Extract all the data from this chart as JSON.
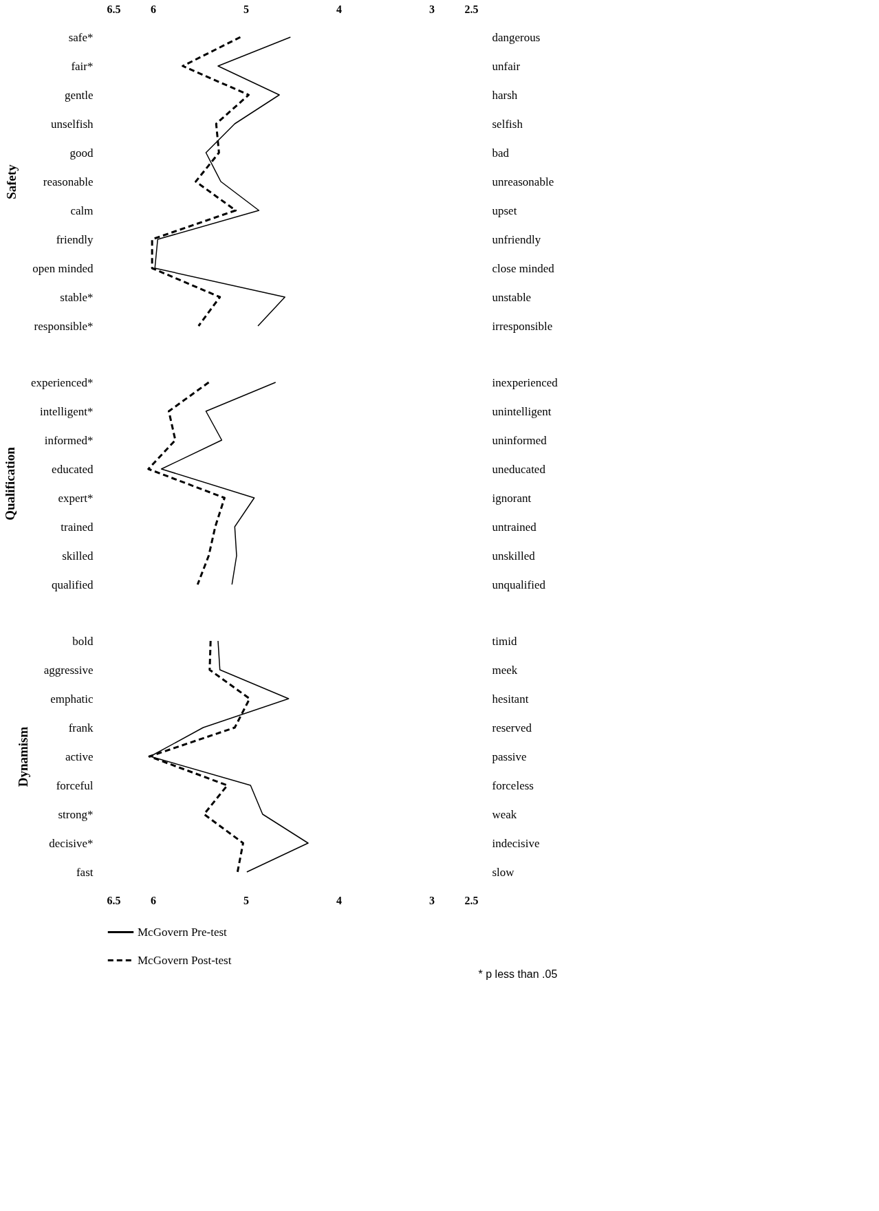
{
  "chart_data": [
    {
      "type": "line",
      "orientation": "horizontal",
      "ylabel": "Safety",
      "xlim": [
        6.5,
        2.5
      ],
      "xticks": [
        6.5,
        6,
        5,
        4,
        3,
        2.5
      ],
      "grid": false,
      "categories": [
        "safe*",
        "fair*",
        "gentle",
        "unselfish",
        "good",
        "reasonable",
        "calm",
        "friendly",
        "open minded",
        "stable*",
        "responsible*"
      ],
      "y2_categories": [
        "dangerous",
        "unfair",
        "harsh",
        "selfish",
        "bad",
        "unreasonable",
        "upset",
        "unfriendly",
        "close minded",
        "unstable",
        "irresponsible"
      ],
      "series": [
        {
          "color": "#000000",
          "line_style": "solid",
          "values": [
            4.52,
            5.3,
            4.64,
            5.12,
            5.43,
            5.27,
            4.86,
            5.95,
            5.98,
            4.58,
            4.87
          ]
        },
        {
          "color": "#000000",
          "line_style": "dashed",
          "values": [
            5.06,
            5.68,
            4.97,
            5.32,
            5.29,
            5.54,
            5.11,
            6.01,
            6.01,
            5.28,
            5.51
          ]
        }
      ]
    },
    {
      "type": "line",
      "orientation": "horizontal",
      "ylabel": "Qualification",
      "xlim": [
        6.5,
        2.5
      ],
      "tick_labels": "y",
      "grid": false,
      "categories": [
        "experienced*",
        "intelligent*",
        "informed*",
        "educated",
        "expert*",
        "trained",
        "skilled",
        "qualified"
      ],
      "y2_categories": [
        "inexperienced",
        "unintelligent",
        "uninformed",
        "uneducated",
        "ignorant",
        "untrained",
        "unskilled",
        "unqualified"
      ],
      "series": [
        {
          "color": "#000000",
          "line_style": "solid",
          "values": [
            4.68,
            5.43,
            5.26,
            5.91,
            4.91,
            5.12,
            5.1,
            5.15
          ]
        },
        {
          "color": "#000000",
          "line_style": "dashed",
          "values": [
            5.4,
            5.83,
            5.76,
            6.05,
            5.23,
            5.33,
            5.4,
            5.52
          ]
        }
      ]
    },
    {
      "type": "line",
      "orientation": "horizontal",
      "ylabel": "Dynamism",
      "xlim": [
        6.5,
        2.5
      ],
      "xticks": [
        6.5,
        6,
        5,
        4,
        3,
        2.5
      ],
      "grid": false,
      "legend": "bottom",
      "categories": [
        "bold",
        "aggressive",
        "emphatic",
        "frank",
        "active",
        "forceful",
        "strong*",
        "decisive*",
        "fast"
      ],
      "y2_categories": [
        "timid",
        "meek",
        "hesitant",
        "reserved",
        "passive",
        "forceless",
        "weak",
        "indecisive",
        "slow"
      ],
      "annotations": [
        "* p less than .05"
      ],
      "series": [
        {
          "name": "McGovern Pre-test",
          "color": "#000000",
          "line_style": "solid",
          "values": [
            5.3,
            5.28,
            4.54,
            5.46,
            6.03,
            4.95,
            4.82,
            4.33,
            4.99
          ]
        },
        {
          "name": "McGovern Post-test",
          "color": "#000000",
          "line_style": "dashed",
          "values": [
            5.38,
            5.39,
            4.96,
            5.12,
            6.04,
            5.2,
            5.45,
            5.03,
            5.09
          ]
        }
      ]
    }
  ]
}
